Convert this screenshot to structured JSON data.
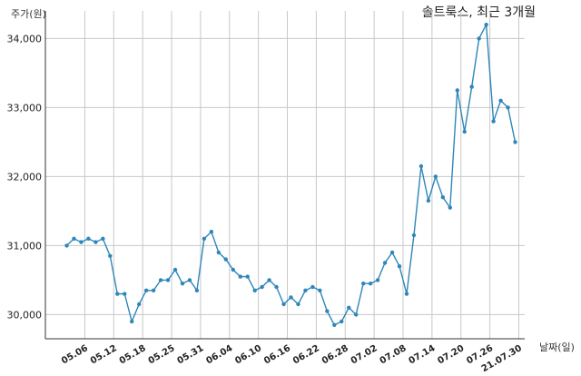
{
  "chart_data": {
    "type": "line",
    "title": "솔트룩스, 최근 3개월",
    "xlabel": "날짜(일)",
    "ylabel": "주가(원)",
    "ylim": [
      29650,
      34400
    ],
    "yticks": [
      30000,
      31000,
      32000,
      33000,
      34000
    ],
    "ytick_labels": [
      "30,000",
      "31,000",
      "32,000",
      "33,000",
      "34,000"
    ],
    "xtick_labels": [
      "05.06",
      "05.12",
      "05.18",
      "05.25",
      "05.31",
      "06.04",
      "06.10",
      "06.16",
      "06.22",
      "06.28",
      "07.02",
      "07.08",
      "07.14",
      "07.20",
      "07.26",
      "21.07.30"
    ],
    "xtick_positions": [
      2.5,
      6.5,
      10.5,
      14.5,
      18.5,
      22.5,
      26.5,
      30.5,
      34.5,
      38.5,
      42.5,
      46.5,
      50.5,
      54.5,
      58.5,
      62.5
    ],
    "grid": true,
    "color": "#2e86b9",
    "series": [
      {
        "values": [
          31000,
          31100,
          31050,
          31100,
          31050,
          31100,
          30850,
          30300,
          30300,
          29900,
          30150,
          30350,
          30350,
          30500,
          30500,
          30650,
          30450,
          30500,
          30350,
          31100,
          31200,
          30900,
          30800,
          30650,
          30550,
          30550,
          30350,
          30400,
          30500,
          30400,
          30150,
          30250,
          30150,
          30350,
          30400,
          30350,
          30050,
          29850,
          29900,
          30100,
          30000,
          30450,
          30450,
          30500,
          30750,
          30900,
          30700,
          30300,
          31150,
          32150,
          31650,
          32000,
          31700,
          31550,
          33250,
          32650,
          33300,
          34000,
          34200,
          32800,
          33100,
          33000,
          32500
        ]
      }
    ]
  }
}
